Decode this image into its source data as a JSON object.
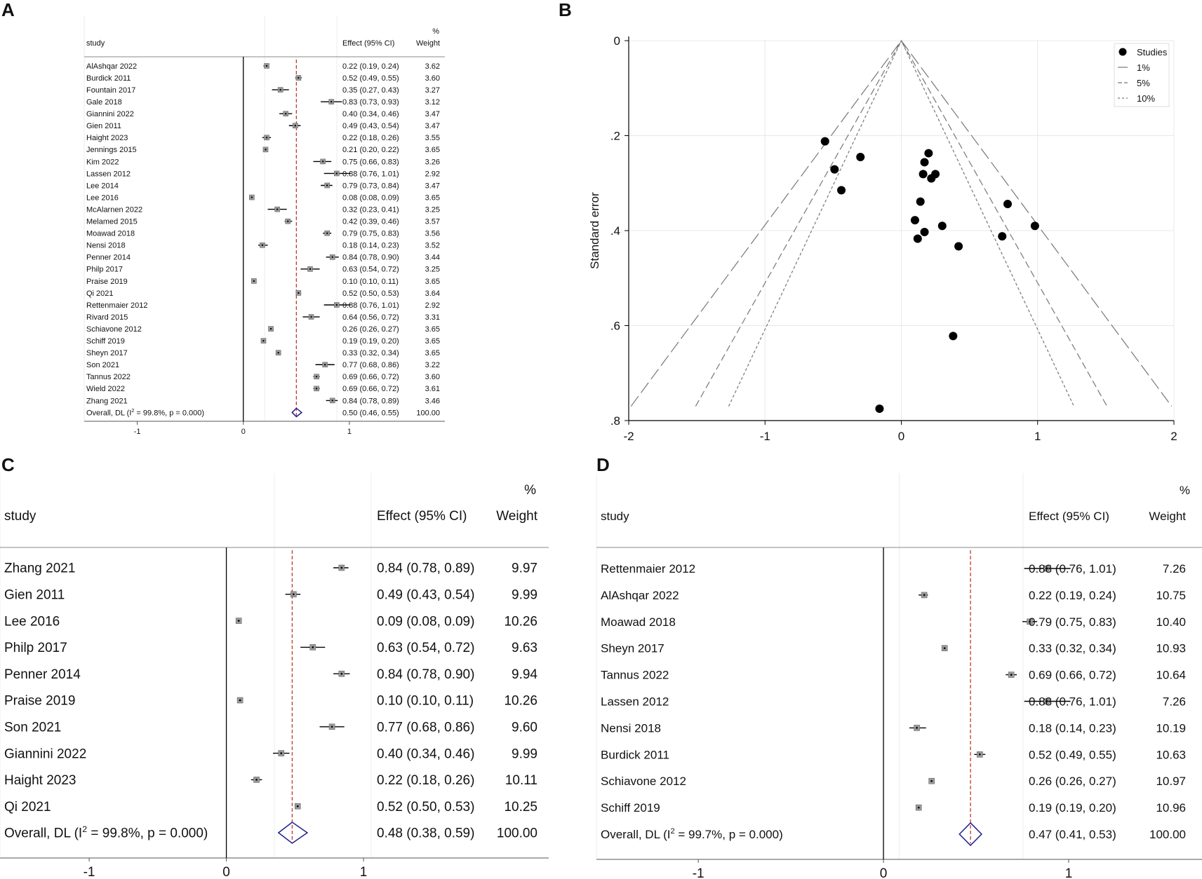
{
  "chart_data": [
    {
      "panel": "A",
      "type": "forest",
      "col_study": "study",
      "col_effect": "Effect (95% CI)",
      "col_pct": "%",
      "col_weight": "Weight",
      "xticks": [
        -1,
        0,
        1
      ],
      "xlim": [
        -1.5,
        1.9
      ],
      "ref_line": 0.5,
      "studies": [
        {
          "name": "AlAshqar 2022",
          "est": 0.22,
          "lo": 0.19,
          "hi": 0.24,
          "label": "0.22 (0.19, 0.24)",
          "weight": "3.62"
        },
        {
          "name": "Burdick 2011",
          "est": 0.52,
          "lo": 0.49,
          "hi": 0.55,
          "label": "0.52 (0.49, 0.55)",
          "weight": "3.60"
        },
        {
          "name": "Fountain 2017",
          "est": 0.35,
          "lo": 0.27,
          "hi": 0.43,
          "label": "0.35 (0.27, 0.43)",
          "weight": "3.27"
        },
        {
          "name": "Gale 2018",
          "est": 0.83,
          "lo": 0.73,
          "hi": 0.93,
          "label": "0.83 (0.73, 0.93)",
          "weight": "3.12"
        },
        {
          "name": "Giannini 2022",
          "est": 0.4,
          "lo": 0.34,
          "hi": 0.46,
          "label": "0.40 (0.34, 0.46)",
          "weight": "3.47"
        },
        {
          "name": "Gien 2011",
          "est": 0.49,
          "lo": 0.43,
          "hi": 0.54,
          "label": "0.49 (0.43, 0.54)",
          "weight": "3.47"
        },
        {
          "name": "Haight 2023",
          "est": 0.22,
          "lo": 0.18,
          "hi": 0.26,
          "label": "0.22 (0.18, 0.26)",
          "weight": "3.55"
        },
        {
          "name": "Jennings 2015",
          "est": 0.21,
          "lo": 0.2,
          "hi": 0.22,
          "label": "0.21 (0.20, 0.22)",
          "weight": "3.65"
        },
        {
          "name": "Kim 2022",
          "est": 0.75,
          "lo": 0.66,
          "hi": 0.83,
          "label": "0.75 (0.66, 0.83)",
          "weight": "3.26"
        },
        {
          "name": "Lassen 2012",
          "est": 0.88,
          "lo": 0.76,
          "hi": 1.01,
          "label": "0.88 (0.76, 1.01)",
          "weight": "2.92"
        },
        {
          "name": "Lee 2014",
          "est": 0.79,
          "lo": 0.73,
          "hi": 0.84,
          "label": "0.79 (0.73, 0.84)",
          "weight": "3.47"
        },
        {
          "name": "Lee 2016",
          "est": 0.08,
          "lo": 0.08,
          "hi": 0.09,
          "label": "0.08 (0.08, 0.09)",
          "weight": "3.65"
        },
        {
          "name": "McAlarnen 2022",
          "est": 0.32,
          "lo": 0.23,
          "hi": 0.41,
          "label": "0.32 (0.23, 0.41)",
          "weight": "3.25"
        },
        {
          "name": "Melamed 2015",
          "est": 0.42,
          "lo": 0.39,
          "hi": 0.46,
          "label": "0.42 (0.39, 0.46)",
          "weight": "3.57"
        },
        {
          "name": "Moawad 2018",
          "est": 0.79,
          "lo": 0.75,
          "hi": 0.83,
          "label": "0.79 (0.75, 0.83)",
          "weight": "3.56"
        },
        {
          "name": "Nensi 2018",
          "est": 0.18,
          "lo": 0.14,
          "hi": 0.23,
          "label": "0.18 (0.14, 0.23)",
          "weight": "3.52"
        },
        {
          "name": "Penner 2014",
          "est": 0.84,
          "lo": 0.78,
          "hi": 0.9,
          "label": "0.84 (0.78, 0.90)",
          "weight": "3.44"
        },
        {
          "name": "Philp 2017",
          "est": 0.63,
          "lo": 0.54,
          "hi": 0.72,
          "label": "0.63 (0.54, 0.72)",
          "weight": "3.25"
        },
        {
          "name": "Praise 2019",
          "est": 0.1,
          "lo": 0.1,
          "hi": 0.11,
          "label": "0.10 (0.10, 0.11)",
          "weight": "3.65"
        },
        {
          "name": "Qi 2021",
          "est": 0.52,
          "lo": 0.5,
          "hi": 0.53,
          "label": "0.52 (0.50, 0.53)",
          "weight": "3.64"
        },
        {
          "name": "Rettenmaier 2012",
          "est": 0.88,
          "lo": 0.76,
          "hi": 1.01,
          "label": "0.88 (0.76, 1.01)",
          "weight": "2.92"
        },
        {
          "name": "Rivard 2015",
          "est": 0.64,
          "lo": 0.56,
          "hi": 0.72,
          "label": "0.64 (0.56, 0.72)",
          "weight": "3.31"
        },
        {
          "name": "Schiavone 2012",
          "est": 0.26,
          "lo": 0.26,
          "hi": 0.27,
          "label": "0.26 (0.26, 0.27)",
          "weight": "3.65"
        },
        {
          "name": "Schiff 2019",
          "est": 0.19,
          "lo": 0.19,
          "hi": 0.2,
          "label": "0.19 (0.19, 0.20)",
          "weight": "3.65"
        },
        {
          "name": "Sheyn 2017",
          "est": 0.33,
          "lo": 0.32,
          "hi": 0.34,
          "label": "0.33 (0.32, 0.34)",
          "weight": "3.65"
        },
        {
          "name": "Son 2021",
          "est": 0.77,
          "lo": 0.68,
          "hi": 0.86,
          "label": "0.77 (0.68, 0.86)",
          "weight": "3.22"
        },
        {
          "name": "Tannus 2022",
          "est": 0.69,
          "lo": 0.66,
          "hi": 0.72,
          "label": "0.69 (0.66, 0.72)",
          "weight": "3.60"
        },
        {
          "name": "Wield 2022",
          "est": 0.69,
          "lo": 0.66,
          "hi": 0.72,
          "label": "0.69 (0.66, 0.72)",
          "weight": "3.61"
        },
        {
          "name": "Zhang 2021",
          "est": 0.84,
          "lo": 0.78,
          "hi": 0.89,
          "label": "0.84 (0.78, 0.89)",
          "weight": "3.46"
        }
      ],
      "overall": {
        "prefix": "Overall, DL (I",
        "sup": "2",
        "suffix": " = 99.8%, p = 0.000)",
        "est": 0.5,
        "lo": 0.46,
        "hi": 0.55,
        "label": "0.50 (0.46, 0.55)",
        "weight": "100.00"
      }
    },
    {
      "panel": "B",
      "type": "scatter",
      "ylabel": "Standard error",
      "xticks": [
        "-2",
        "-1",
        "0",
        "1",
        "2"
      ],
      "yticks": [
        "0",
        ".2",
        ".4",
        ".6",
        ".8"
      ],
      "xlim": [
        -2,
        2
      ],
      "ylim": [
        0,
        0.8
      ],
      "legend": [
        "Studies",
        "1%",
        "5%",
        "10%"
      ],
      "funnel_z": [
        2.576,
        1.96,
        1.645
      ],
      "funnel_se_max": 0.77,
      "points": [
        {
          "x": -0.56,
          "y": 0.212
        },
        {
          "x": -0.49,
          "y": 0.271
        },
        {
          "x": -0.3,
          "y": 0.245
        },
        {
          "x": -0.44,
          "y": 0.315
        },
        {
          "x": 0.2,
          "y": 0.237
        },
        {
          "x": 0.17,
          "y": 0.256
        },
        {
          "x": 0.16,
          "y": 0.281
        },
        {
          "x": 0.25,
          "y": 0.281
        },
        {
          "x": 0.22,
          "y": 0.29
        },
        {
          "x": 0.14,
          "y": 0.339
        },
        {
          "x": 0.78,
          "y": 0.344
        },
        {
          "x": 0.1,
          "y": 0.378
        },
        {
          "x": 0.3,
          "y": 0.39
        },
        {
          "x": 0.98,
          "y": 0.39
        },
        {
          "x": 0.17,
          "y": 0.403
        },
        {
          "x": 0.74,
          "y": 0.412
        },
        {
          "x": 0.12,
          "y": 0.417
        },
        {
          "x": 0.42,
          "y": 0.433
        },
        {
          "x": 0.38,
          "y": 0.622
        },
        {
          "x": -0.16,
          "y": 0.775
        }
      ]
    },
    {
      "panel": "C",
      "type": "forest",
      "col_study": "study",
      "col_effect": "Effect (95% CI)",
      "col_pct": "%",
      "col_weight": "Weight",
      "xticks": [
        -1,
        0,
        1
      ],
      "xlim": [
        -1.65,
        2.35
      ],
      "ref_line": 0.48,
      "studies": [
        {
          "name": "Zhang 2021",
          "est": 0.84,
          "lo": 0.78,
          "hi": 0.89,
          "label": "0.84 (0.78, 0.89)",
          "weight": "9.97"
        },
        {
          "name": "Gien 2011",
          "est": 0.49,
          "lo": 0.43,
          "hi": 0.54,
          "label": "0.49 (0.43, 0.54)",
          "weight": "9.99"
        },
        {
          "name": "Lee 2016",
          "est": 0.09,
          "lo": 0.08,
          "hi": 0.09,
          "label": "0.09 (0.08, 0.09)",
          "weight": "10.26"
        },
        {
          "name": "Philp 2017",
          "est": 0.63,
          "lo": 0.54,
          "hi": 0.72,
          "label": "0.63 (0.54, 0.72)",
          "weight": "9.63"
        },
        {
          "name": "Penner 2014",
          "est": 0.84,
          "lo": 0.78,
          "hi": 0.9,
          "label": "0.84 (0.78, 0.90)",
          "weight": "9.94"
        },
        {
          "name": "Praise 2019",
          "est": 0.1,
          "lo": 0.1,
          "hi": 0.11,
          "label": "0.10 (0.10, 0.11)",
          "weight": "10.26"
        },
        {
          "name": "Son 2021",
          "est": 0.77,
          "lo": 0.68,
          "hi": 0.86,
          "label": "0.77 (0.68, 0.86)",
          "weight": "9.60"
        },
        {
          "name": "Giannini 2022",
          "est": 0.4,
          "lo": 0.34,
          "hi": 0.46,
          "label": "0.40 (0.34, 0.46)",
          "weight": "9.99"
        },
        {
          "name": "Haight 2023",
          "est": 0.22,
          "lo": 0.18,
          "hi": 0.26,
          "label": "0.22 (0.18, 0.26)",
          "weight": "10.11"
        },
        {
          "name": "Qi 2021",
          "est": 0.52,
          "lo": 0.5,
          "hi": 0.53,
          "label": "0.52 (0.50, 0.53)",
          "weight": "10.25"
        }
      ],
      "overall": {
        "prefix": "Overall, DL (I",
        "sup": "2",
        "suffix": " = 99.8%, p = 0.000)",
        "est": 0.48,
        "lo": 0.38,
        "hi": 0.59,
        "label": "0.48 (0.38, 0.59)",
        "weight": "100.00"
      }
    },
    {
      "panel": "D",
      "type": "forest",
      "col_study": "study",
      "col_effect": "Effect (95% CI)",
      "col_pct": "%",
      "col_weight": "Weight",
      "xticks": [
        -1,
        0,
        1
      ],
      "xlim": [
        -1.55,
        1.72
      ],
      "ref_line": 0.47,
      "studies": [
        {
          "name": "Rettenmaier 2012",
          "est": 0.88,
          "lo": 0.76,
          "hi": 1.01,
          "label": "0.88 (0.76, 1.01)",
          "weight": "7.26"
        },
        {
          "name": "AlAshqar 2022",
          "est": 0.22,
          "lo": 0.19,
          "hi": 0.24,
          "label": "0.22 (0.19, 0.24)",
          "weight": "10.75"
        },
        {
          "name": "Moawad 2018",
          "est": 0.79,
          "lo": 0.75,
          "hi": 0.83,
          "label": "0.79 (0.75, 0.83)",
          "weight": "10.40"
        },
        {
          "name": "Sheyn 2017",
          "est": 0.33,
          "lo": 0.32,
          "hi": 0.34,
          "label": "0.33 (0.32, 0.34)",
          "weight": "10.93"
        },
        {
          "name": "Tannus 2022",
          "est": 0.69,
          "lo": 0.66,
          "hi": 0.72,
          "label": "0.69 (0.66, 0.72)",
          "weight": "10.64"
        },
        {
          "name": "Lassen 2012",
          "est": 0.88,
          "lo": 0.76,
          "hi": 1.01,
          "label": "0.88 (0.76, 1.01)",
          "weight": "7.26"
        },
        {
          "name": "Nensi 2018",
          "est": 0.18,
          "lo": 0.14,
          "hi": 0.23,
          "label": "0.18 (0.14, 0.23)",
          "weight": "10.19"
        },
        {
          "name": "Burdick 2011",
          "est": 0.52,
          "lo": 0.49,
          "hi": 0.55,
          "label": "0.52 (0.49, 0.55)",
          "weight": "10.63"
        },
        {
          "name": "Schiavone 2012",
          "est": 0.26,
          "lo": 0.26,
          "hi": 0.27,
          "label": "0.26 (0.26, 0.27)",
          "weight": "10.97"
        },
        {
          "name": "Schiff 2019",
          "est": 0.19,
          "lo": 0.19,
          "hi": 0.2,
          "label": "0.19 (0.19, 0.20)",
          "weight": "10.96"
        }
      ],
      "overall": {
        "prefix": "Overall, DL (I",
        "sup": "2",
        "suffix": " = 99.7%, p = 0.000)",
        "est": 0.47,
        "lo": 0.41,
        "hi": 0.53,
        "label": "0.47 (0.41, 0.53)",
        "weight": "100.00"
      }
    }
  ]
}
